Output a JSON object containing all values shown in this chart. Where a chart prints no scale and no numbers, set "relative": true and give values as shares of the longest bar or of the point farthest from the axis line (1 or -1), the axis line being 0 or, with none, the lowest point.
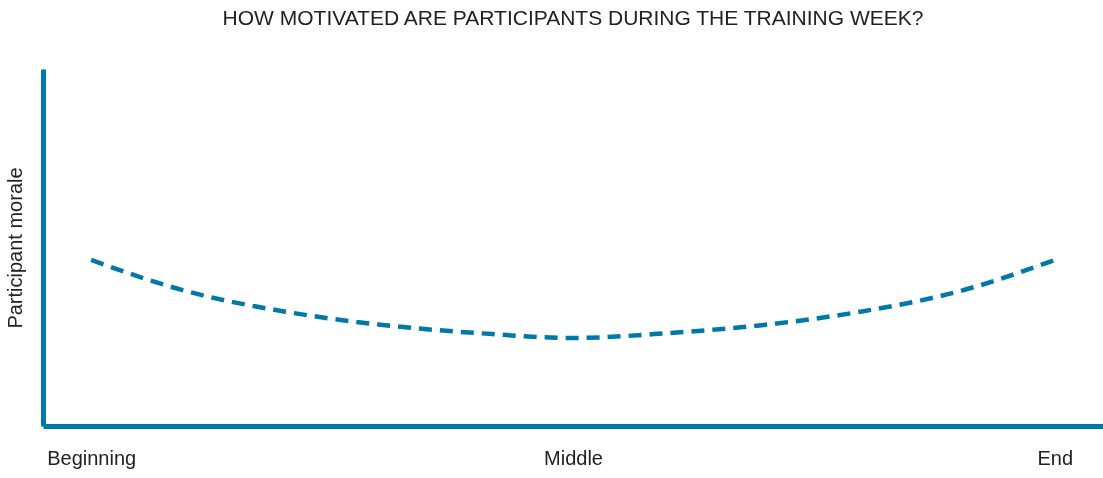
{
  "chart_data": {
    "type": "line",
    "title": "HOW MOTIVATED ARE PARTICIPANTS DURING THE TRAINING WEEK?",
    "ylabel": "Participant morale",
    "relative": true,
    "categories": [
      "Beginning",
      null,
      null,
      null,
      null,
      "Middle",
      null,
      null,
      null,
      null,
      "End"
    ],
    "series": [
      {
        "color": "#0078a8",
        "values": [
          1,
          0.81,
          0.69,
          0.61,
          0.56,
          0.53,
          0.56,
          0.61,
          0.69,
          0.81,
          1
        ]
      }
    ],
    "line_style": "dashed",
    "marker": "none",
    "grid": false,
    "legend": false
  }
}
